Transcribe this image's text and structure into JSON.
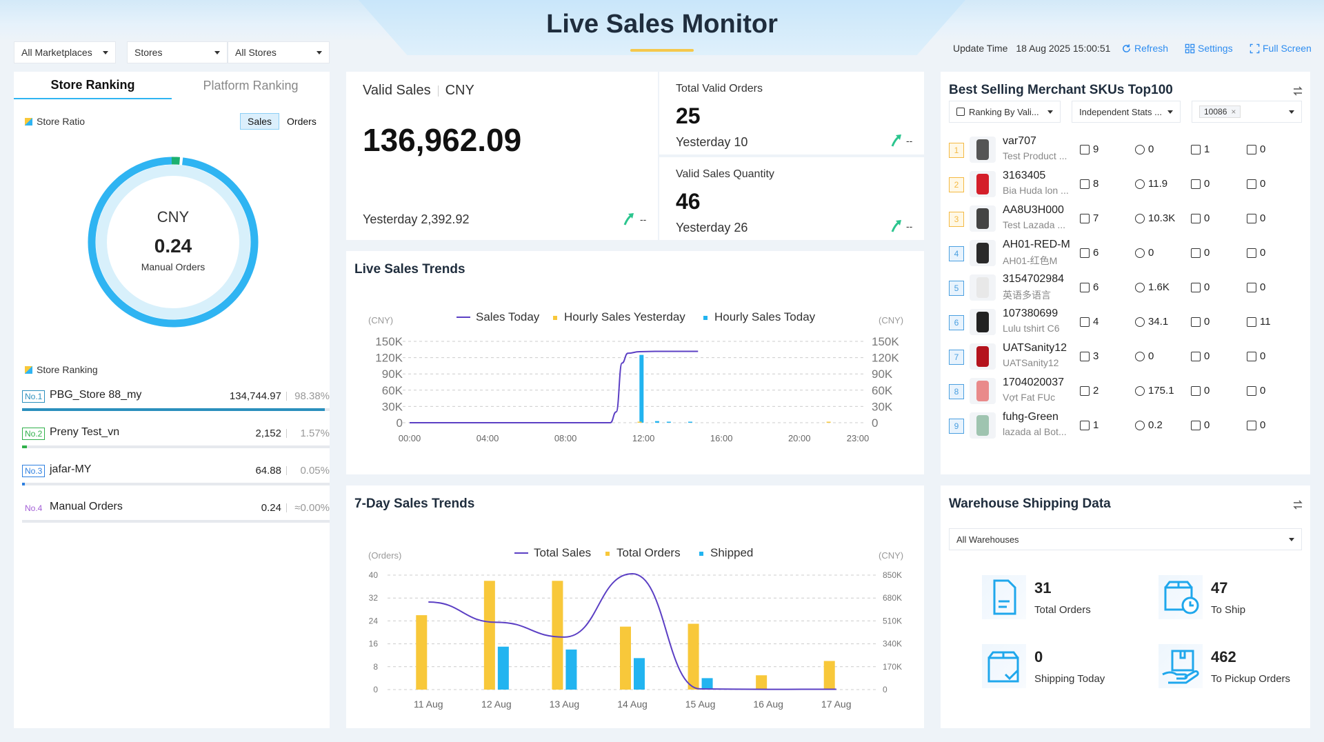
{
  "header": {
    "title": "Live Sales Monitor"
  },
  "filters": {
    "marketplace": "All Marketplaces",
    "store_type": "Stores",
    "stores": "All Stores"
  },
  "topbar": {
    "update_label": "Update Time",
    "update_value": "18 Aug 2025 15:00:51",
    "refresh": "Refresh",
    "settings": "Settings",
    "fullscreen": "Full Screen"
  },
  "store_panel": {
    "tab_store": "Store Ranking",
    "tab_platform": "Platform Ranking",
    "ratio_label": "Store Ratio",
    "toggle_sales": "Sales",
    "toggle_orders": "Orders",
    "donut_currency": "CNY",
    "donut_value": "0.24",
    "donut_caption": "Manual Orders",
    "donut_main_fraction": 0.9838,
    "donut_small_fraction": 0.0157,
    "ranking_label": "Store Ranking",
    "ranking": [
      {
        "badge": "No.1",
        "name": "PBG_Store 88_my",
        "value": "134,744.97",
        "pct": "98.38%",
        "fraction": 0.9838,
        "color": "#2a8fbd"
      },
      {
        "badge": "No.2",
        "name": "Preny Test_vn",
        "value": "2,152",
        "pct": "1.57%",
        "fraction": 0.0157,
        "color": "#2fb04a"
      },
      {
        "badge": "No.3",
        "name": "jafar-MY",
        "value": "64.88",
        "pct": "0.05%",
        "fraction": 0.0005,
        "color": "#2d7fe0"
      },
      {
        "badge": "No.4",
        "name": "Manual Orders",
        "value": "0.24",
        "pct": "≈0.00%",
        "fraction": 0.0,
        "color": "#a35fd6"
      }
    ]
  },
  "valid_sales": {
    "label": "Valid Sales",
    "currency": "CNY",
    "value": "136,962.09",
    "yesterday": "Yesterday 2,392.92",
    "change": "--"
  },
  "total_orders": {
    "label": "Total Valid Orders",
    "value": "25",
    "yesterday": "Yesterday 10",
    "change": "--"
  },
  "sales_qty": {
    "label": "Valid Sales Quantity",
    "value": "46",
    "yesterday": "Yesterday 26",
    "change": "--"
  },
  "live_trend": {
    "title": "Live Sales Trends",
    "left_unit": "(CNY)",
    "right_unit": "(CNY)",
    "legend": [
      "Sales Today",
      "Hourly Sales Yesterday",
      "Hourly Sales Today"
    ],
    "y_ticks": [
      "150K",
      "120K",
      "90K",
      "60K",
      "30K",
      "0"
    ],
    "x_ticks": [
      "00:00",
      "04:00",
      "08:00",
      "12:00",
      "16:00",
      "20:00",
      "23:00"
    ]
  },
  "seven_day": {
    "title": "7-Day Sales Trends",
    "left_unit": "(Orders)",
    "right_unit": "(CNY)",
    "legend": [
      "Total Sales",
      "Total Orders",
      "Shipped"
    ],
    "y_left": [
      "40",
      "32",
      "24",
      "16",
      "8",
      "0"
    ],
    "y_right": [
      "850K",
      "680K",
      "510K",
      "340K",
      "170K",
      "0"
    ]
  },
  "chart_data": [
    {
      "type": "line",
      "title": "Live Sales Trends",
      "x_range": [
        0,
        23
      ],
      "ylim": [
        0,
        150000
      ],
      "series": [
        {
          "name": "Sales Today",
          "kind": "line",
          "points": [
            [
              0,
              0
            ],
            [
              10.3,
              0
            ],
            [
              10.6,
              20000
            ],
            [
              10.9,
              110000
            ],
            [
              11.2,
              128000
            ],
            [
              11.8,
              131000
            ],
            [
              12.6,
              131500
            ],
            [
              14.8,
              131500
            ]
          ]
        },
        {
          "name": "Hourly Sales Yesterday",
          "kind": "bar",
          "points": [
            [
              11.8,
              0
            ],
            [
              21.5,
              0
            ]
          ]
        },
        {
          "name": "Hourly Sales Today",
          "kind": "bar",
          "points": [
            [
              11.9,
              125000
            ],
            [
              12.7,
              3000
            ],
            [
              13.3,
              1000
            ],
            [
              14.4,
              500
            ]
          ]
        }
      ]
    },
    {
      "type": "bar",
      "title": "7-Day Sales Trends",
      "categories": [
        "11 Aug",
        "12 Aug",
        "13 Aug",
        "14 Aug",
        "15 Aug",
        "16 Aug",
        "17 Aug"
      ],
      "left_ylim": [
        0,
        40
      ],
      "right_ylim": [
        0,
        850000
      ],
      "series": [
        {
          "name": "Total Orders",
          "axis": "left",
          "values": [
            26,
            38,
            38,
            22,
            23,
            5,
            10
          ]
        },
        {
          "name": "Shipped",
          "axis": "left",
          "values": [
            0,
            15,
            14,
            11,
            4,
            0,
            0
          ]
        },
        {
          "name": "Total Sales",
          "axis": "right",
          "kind": "line",
          "values": [
            650000,
            500000,
            390000,
            860000,
            5000,
            2000,
            2500
          ]
        }
      ]
    }
  ],
  "sku_panel": {
    "title": "Best Selling Merchant SKUs Top100",
    "filter_rank": "Ranking By Vali...",
    "filter_stats": "Independent Stats ...",
    "filter_tag": "10086",
    "rows": [
      {
        "idx": "1",
        "code": "var707",
        "name": "Test Product ...",
        "m1": "9",
        "m2": "0",
        "m3": "1",
        "m4": "0",
        "thumb": "#555"
      },
      {
        "idx": "2",
        "code": "3163405",
        "name": "Bia Huda lon ...",
        "m1": "8",
        "m2": "11.9",
        "m3": "0",
        "m4": "0",
        "thumb": "#d41f2a"
      },
      {
        "idx": "3",
        "code": "AA8U3H000",
        "name": "Test Lazada ...",
        "m1": "7",
        "m2": "10.3K",
        "m3": "0",
        "m4": "0",
        "thumb": "#444"
      },
      {
        "idx": "4",
        "code": "AH01-RED-M",
        "name": "AH01-红色M",
        "m1": "6",
        "m2": "0",
        "m3": "0",
        "m4": "0",
        "thumb": "#2a2a2a"
      },
      {
        "idx": "5",
        "code": "3154702984",
        "name": "英语多语言",
        "m1": "6",
        "m2": "1.6K",
        "m3": "0",
        "m4": "0",
        "thumb": "#e8e8e8"
      },
      {
        "idx": "6",
        "code": "107380699",
        "name": "Lulu tshirt C6",
        "m1": "4",
        "m2": "34.1",
        "m3": "0",
        "m4": "11",
        "thumb": "#222"
      },
      {
        "idx": "7",
        "code": "UATSanity12",
        "name": "UATSanity12",
        "m1": "3",
        "m2": "0",
        "m3": "0",
        "m4": "0",
        "thumb": "#b4131d"
      },
      {
        "idx": "8",
        "code": "1704020037",
        "name": "Vợt Fat FUc",
        "m1": "2",
        "m2": "175.1",
        "m3": "0",
        "m4": "0",
        "thumb": "#e98a8a"
      },
      {
        "idx": "9",
        "code": "fuhg-Green",
        "name": "lazada al Bot...",
        "m1": "1",
        "m2": "0.2",
        "m3": "0",
        "m4": "0",
        "thumb": "#9fc4b0"
      }
    ]
  },
  "warehouse": {
    "title": "Warehouse Shipping Data",
    "select": "All Warehouses",
    "items": [
      {
        "value": "31",
        "label": "Total Orders"
      },
      {
        "value": "47",
        "label": "To Ship"
      },
      {
        "value": "0",
        "label": "Shipping Today"
      },
      {
        "value": "462",
        "label": "To Pickup Orders"
      }
    ]
  },
  "colors": {
    "accent": "#2d8cf0",
    "line": "#5b3fc4",
    "bar_yellow": "#f8c83a",
    "bar_blue": "#22b4f0",
    "donut": "#2fb4f2"
  }
}
